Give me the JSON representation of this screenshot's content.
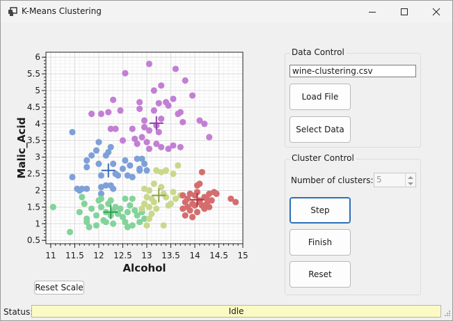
{
  "window": {
    "title": "K-Means Clustering"
  },
  "data_control": {
    "label": "Data Control",
    "file_value": "wine-clustering.csv",
    "load_label": "Load File",
    "select_label": "Select Data"
  },
  "cluster_control": {
    "label": "Cluster Control",
    "num_clusters_label": "Number of clusters:",
    "num_clusters_value": "5",
    "step_label": "Step",
    "finish_label": "Finish",
    "reset_label": "Reset"
  },
  "plot": {
    "reset_scale_label": "Reset Scale"
  },
  "status": {
    "label": "Status:",
    "value": "Idle"
  },
  "chart_data": {
    "type": "scatter",
    "xlabel": "Alcohol",
    "ylabel": "Malic_Acid",
    "xlim": [
      10.9,
      15.0
    ],
    "ylim": [
      0.4,
      6.15
    ],
    "xticks": [
      "11",
      "11.5",
      "12",
      "12.5",
      "13",
      "13.5",
      "14",
      "14.5",
      "15"
    ],
    "yticks": [
      "0.5",
      "1",
      "1.5",
      "2",
      "2.5",
      "3",
      "3.5",
      "4",
      "4.5",
      "5",
      "5.5",
      "6"
    ],
    "grid": true,
    "series": [
      {
        "color": "#c27fd4",
        "points": [
          [
            13.05,
            5.8
          ],
          [
            13.6,
            5.65
          ],
          [
            12.55,
            5.52
          ],
          [
            13.8,
            5.3
          ],
          [
            13.3,
            5.15
          ],
          [
            13.15,
            5.0
          ],
          [
            13.55,
            4.75
          ],
          [
            12.85,
            4.65
          ],
          [
            13.4,
            4.65
          ],
          [
            12.3,
            4.72
          ],
          [
            13.95,
            4.85
          ],
          [
            12.2,
            4.35
          ],
          [
            13.25,
            4.62
          ],
          [
            12.85,
            4.45
          ],
          [
            13.7,
            4.35
          ],
          [
            13.45,
            4.55
          ],
          [
            11.85,
            4.3
          ],
          [
            12.05,
            4.3
          ],
          [
            12.45,
            4.4
          ],
          [
            13.15,
            4.4
          ],
          [
            13.65,
            4.3
          ],
          [
            12.95,
            4.1
          ],
          [
            13.3,
            4.15
          ],
          [
            13.75,
            4.05
          ],
          [
            14.1,
            4.1
          ],
          [
            14.2,
            4.0
          ],
          [
            12.25,
            3.85
          ],
          [
            12.35,
            3.85
          ],
          [
            12.7,
            3.85
          ],
          [
            12.95,
            3.9
          ],
          [
            13.05,
            3.8
          ],
          [
            13.25,
            3.75
          ],
          [
            13.2,
            3.95
          ],
          [
            12.9,
            3.6
          ],
          [
            14.3,
            3.6
          ],
          [
            12.75,
            3.55
          ],
          [
            13.0,
            3.45
          ],
          [
            13.2,
            3.4
          ],
          [
            13.3,
            3.3
          ],
          [
            13.55,
            3.35
          ],
          [
            13.7,
            3.3
          ],
          [
            13.05,
            3.25
          ],
          [
            13.45,
            3.25
          ],
          [
            12.5,
            3.5
          ],
          [
            12.8,
            3.4
          ]
        ]
      },
      {
        "color": "#7ea0d8",
        "points": [
          [
            11.45,
            3.75
          ],
          [
            12.0,
            3.45
          ],
          [
            11.95,
            3.2
          ],
          [
            12.2,
            3.15
          ],
          [
            12.25,
            3.3
          ],
          [
            11.85,
            3.05
          ],
          [
            12.15,
            3.05
          ],
          [
            11.75,
            2.9
          ],
          [
            11.75,
            2.7
          ],
          [
            12.0,
            2.8
          ],
          [
            12.3,
            2.8
          ],
          [
            12.55,
            2.9
          ],
          [
            12.8,
            2.95
          ],
          [
            12.9,
            2.95
          ],
          [
            12.95,
            2.8
          ],
          [
            12.65,
            2.75
          ],
          [
            12.5,
            2.65
          ],
          [
            12.85,
            2.65
          ],
          [
            12.05,
            2.45
          ],
          [
            12.35,
            2.5
          ],
          [
            12.4,
            2.45
          ],
          [
            12.6,
            2.45
          ],
          [
            12.7,
            2.4
          ],
          [
            12.85,
            2.6
          ],
          [
            13.0,
            2.6
          ],
          [
            11.45,
            2.4
          ],
          [
            11.55,
            2.05
          ],
          [
            11.6,
            2.0
          ],
          [
            11.65,
            2.05
          ],
          [
            11.75,
            2.05
          ],
          [
            12.05,
            2.1
          ],
          [
            12.15,
            2.15
          ],
          [
            12.25,
            2.15
          ],
          [
            12.3,
            2.05
          ],
          [
            12.05,
            1.9
          ]
        ]
      },
      {
        "color": "#83d39b",
        "points": [
          [
            11.05,
            1.5
          ],
          [
            11.4,
            0.75
          ],
          [
            11.65,
            1.8
          ],
          [
            11.7,
            1.6
          ],
          [
            11.6,
            1.35
          ],
          [
            11.75,
            1.15
          ],
          [
            11.8,
            0.9
          ],
          [
            11.95,
            1.25
          ],
          [
            11.95,
            0.95
          ],
          [
            12.05,
            1.5
          ],
          [
            12.1,
            1.1
          ],
          [
            12.15,
            1.35
          ],
          [
            12.2,
            1.6
          ],
          [
            12.25,
            1.7
          ],
          [
            12.25,
            1.25
          ],
          [
            12.3,
            1.0
          ],
          [
            12.35,
            1.5
          ],
          [
            12.4,
            1.3
          ],
          [
            12.45,
            1.45
          ],
          [
            12.5,
            1.2
          ],
          [
            12.55,
            1.05
          ],
          [
            12.6,
            1.35
          ],
          [
            12.65,
            1.55
          ],
          [
            12.7,
            1.75
          ],
          [
            12.7,
            0.95
          ],
          [
            12.75,
            1.4
          ],
          [
            12.8,
            1.25
          ],
          [
            12.85,
            1.05
          ],
          [
            12.9,
            1.35
          ],
          [
            12.95,
            1.15
          ],
          [
            12.05,
            1.75
          ],
          [
            12.15,
            1.05
          ],
          [
            11.85,
            1.45
          ],
          [
            11.75,
            1.05
          ],
          [
            12.0,
            1.7
          ],
          [
            12.55,
            1.75
          ],
          [
            12.6,
            0.9
          ],
          [
            12.3,
            1.4
          ]
        ]
      },
      {
        "color": "#c9d88b",
        "points": [
          [
            13.05,
            2.0
          ],
          [
            13.15,
            2.2
          ],
          [
            13.2,
            2.6
          ],
          [
            13.3,
            2.55
          ],
          [
            13.4,
            2.6
          ],
          [
            13.55,
            2.5
          ],
          [
            13.65,
            2.75
          ],
          [
            13.3,
            2.1
          ],
          [
            13.35,
            1.9
          ],
          [
            13.4,
            1.8
          ],
          [
            13.45,
            1.55
          ],
          [
            13.5,
            1.6
          ],
          [
            13.15,
            1.65
          ],
          [
            13.1,
            1.75
          ],
          [
            13.05,
            1.5
          ],
          [
            13.1,
            1.3
          ],
          [
            13.2,
            1.45
          ],
          [
            13.0,
            1.8
          ],
          [
            12.95,
            1.6
          ],
          [
            12.9,
            1.45
          ],
          [
            12.95,
            2.05
          ],
          [
            13.55,
            1.95
          ],
          [
            13.6,
            1.75
          ],
          [
            13.7,
            1.85
          ],
          [
            13.0,
            0.95
          ],
          [
            13.35,
            0.95
          ],
          [
            13.05,
            1.15
          ]
        ]
      },
      {
        "color": "#d56d6f",
        "points": [
          [
            13.75,
            1.85
          ],
          [
            13.8,
            1.65
          ],
          [
            13.85,
            1.75
          ],
          [
            13.85,
            1.5
          ],
          [
            13.9,
            1.9
          ],
          [
            13.9,
            1.4
          ],
          [
            13.95,
            1.6
          ],
          [
            14.0,
            1.85
          ],
          [
            14.0,
            1.55
          ],
          [
            14.05,
            1.95
          ],
          [
            14.05,
            1.35
          ],
          [
            14.1,
            1.7
          ],
          [
            14.1,
            1.65
          ],
          [
            14.15,
            1.55
          ],
          [
            14.2,
            1.8
          ],
          [
            14.2,
            1.45
          ],
          [
            14.25,
            1.75
          ],
          [
            14.25,
            1.6
          ],
          [
            14.3,
            1.9
          ],
          [
            14.35,
            1.7
          ],
          [
            14.4,
            1.95
          ],
          [
            14.45,
            1.9
          ],
          [
            14.05,
            2.15
          ],
          [
            14.1,
            2.2
          ],
          [
            14.15,
            2.55
          ],
          [
            13.8,
            1.25
          ],
          [
            13.75,
            1.45
          ],
          [
            13.95,
            1.2
          ],
          [
            14.75,
            1.75
          ],
          [
            14.85,
            1.65
          ],
          [
            14.3,
            1.5
          ]
        ]
      }
    ],
    "centroids": [
      {
        "x": 13.2,
        "y": 4.02,
        "color": "#8e3fa8"
      },
      {
        "x": 12.2,
        "y": 2.6,
        "color": "#3c68b5"
      },
      {
        "x": 12.25,
        "y": 1.35,
        "color": "#2f9f55"
      },
      {
        "x": 13.25,
        "y": 1.85,
        "color": "#8f9f3f"
      },
      {
        "x": 14.05,
        "y": 1.72,
        "color": "#b8323a"
      }
    ]
  }
}
